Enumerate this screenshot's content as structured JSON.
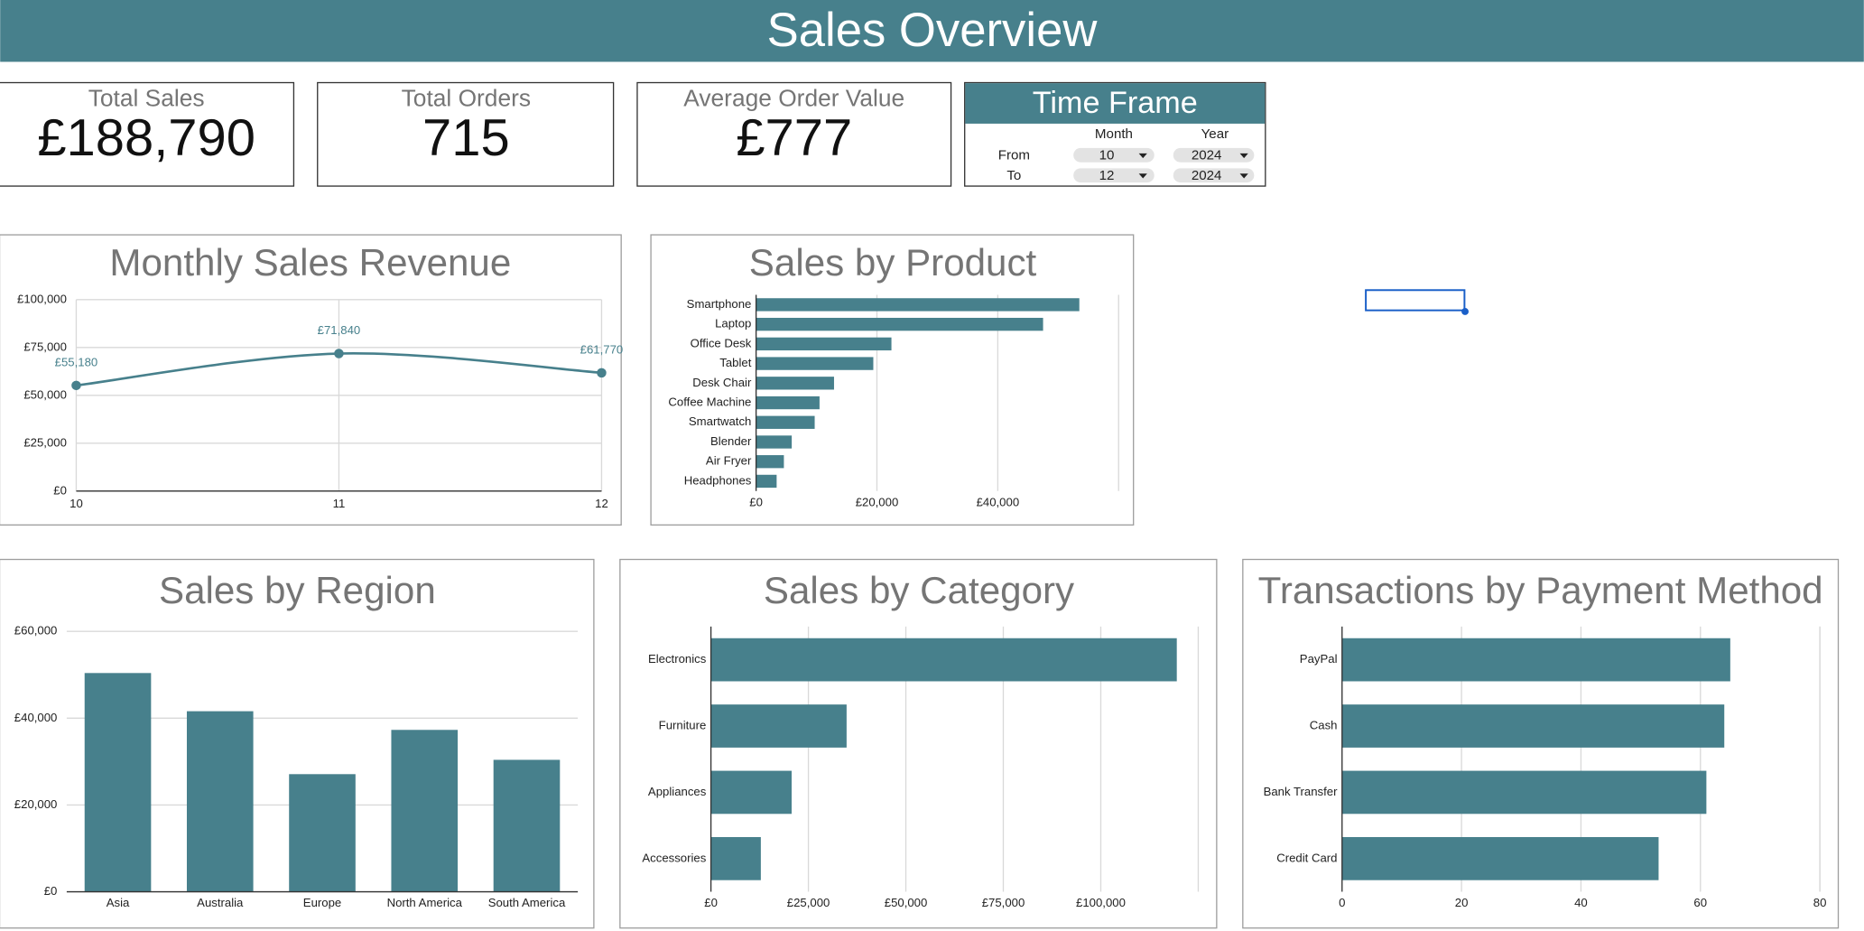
{
  "header": {
    "title": "Sales Overview"
  },
  "kpis": [
    {
      "label": "Total Sales",
      "value": "£188,790"
    },
    {
      "label": "Total Orders",
      "value": "715"
    },
    {
      "label": "Average Order Value",
      "value": "£777"
    }
  ],
  "time_frame": {
    "title": "Time Frame",
    "columns": [
      "Month",
      "Year"
    ],
    "rows": [
      {
        "label": "From",
        "month": "10",
        "year": "2024"
      },
      {
        "label": "To",
        "month": "12",
        "year": "2024"
      }
    ]
  },
  "chart_data": [
    {
      "type": "line",
      "title": "Monthly Sales Revenue",
      "categories": [
        "10",
        "11",
        "12"
      ],
      "values": [
        55180,
        71840,
        61770
      ],
      "value_labels": [
        "£55,180",
        "£71,840",
        "£61,770"
      ],
      "color": "#47808c",
      "ylim": [
        0,
        100000
      ],
      "yticks": [
        {
          "value": 0,
          "label": "£0"
        },
        {
          "value": 25000,
          "label": "£25,000"
        },
        {
          "value": 50000,
          "label": "£50,000"
        },
        {
          "value": 75000,
          "label": "£75,000"
        },
        {
          "value": 100000,
          "label": "£100,000"
        }
      ],
      "grid": true
    },
    {
      "type": "bar",
      "horizontal": true,
      "title": "Sales by Product",
      "categories": [
        "Smartphone",
        "Laptop",
        "Office Desk",
        "Tablet",
        "Desk Chair",
        "Coffee Machine",
        "Smartwatch",
        "Blender",
        "Air Fryer",
        "Headphones"
      ],
      "values": [
        53500,
        47500,
        22400,
        19400,
        12900,
        10500,
        9700,
        5900,
        4600,
        3400
      ],
      "color": "#47808c",
      "xlim": [
        0,
        60000
      ],
      "xticks": [
        {
          "value": 0,
          "label": "£0"
        },
        {
          "value": 20000,
          "label": "£20,000"
        },
        {
          "value": 40000,
          "label": "£40,000"
        }
      ],
      "grid": true
    },
    {
      "type": "bar",
      "horizontal": false,
      "title": "Sales by Region",
      "categories": [
        "Asia",
        "Australia",
        "Europe",
        "North America",
        "South America"
      ],
      "values": [
        50400,
        41600,
        27100,
        37300,
        30400
      ],
      "color": "#47808c",
      "ylim": [
        0,
        60000
      ],
      "yticks": [
        {
          "value": 0,
          "label": "£0"
        },
        {
          "value": 20000,
          "label": "£20,000"
        },
        {
          "value": 40000,
          "label": "£40,000"
        },
        {
          "value": 60000,
          "label": "£60,000"
        }
      ],
      "grid": true
    },
    {
      "type": "bar",
      "horizontal": true,
      "title": "Sales by Category",
      "categories": [
        "Electronics",
        "Furniture",
        "Appliances",
        "Accessories"
      ],
      "values": [
        119500,
        34800,
        20700,
        12800
      ],
      "color": "#47808c",
      "xlim": [
        0,
        125000
      ],
      "xticks": [
        {
          "value": 0,
          "label": "£0"
        },
        {
          "value": 25000,
          "label": "£25,000"
        },
        {
          "value": 50000,
          "label": "£50,000"
        },
        {
          "value": 75000,
          "label": "£75,000"
        },
        {
          "value": 100000,
          "label": "£100,000"
        }
      ],
      "grid": true
    },
    {
      "type": "bar",
      "horizontal": true,
      "title": "Transactions by Payment Method",
      "categories": [
        "PayPal",
        "Cash",
        "Bank Transfer",
        "Credit Card"
      ],
      "values": [
        65,
        64,
        61,
        53
      ],
      "color": "#47808c",
      "xlim": [
        0,
        80
      ],
      "xticks": [
        0,
        20,
        40,
        60,
        80
      ],
      "grid": true
    }
  ]
}
